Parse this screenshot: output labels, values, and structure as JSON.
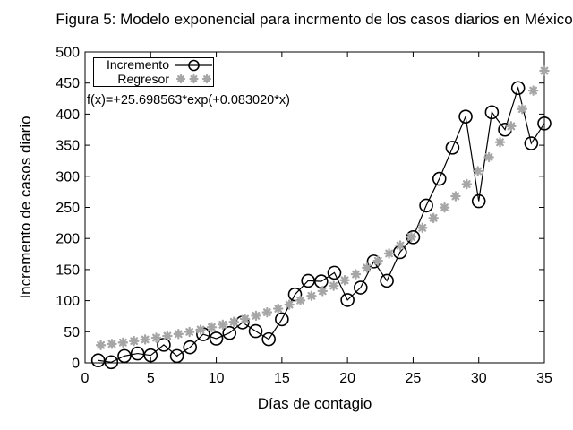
{
  "title": "Figura 5: Modelo exponencial para incrmento de los casos diarios en México",
  "annotation": "f(x)=+25.698563*exp(+0.083020*x)",
  "colors": {
    "incremento": "#000000",
    "regresor": "#a6a6a6",
    "background": "#ffffff",
    "text": "#000000"
  },
  "chart_data": {
    "type": "line",
    "title": "Figura 5: Modelo exponencial para incrmento de los casos diarios en México",
    "xlabel": "Días de contagio",
    "ylabel": "Incremento de casos diario",
    "xlim": [
      0,
      35
    ],
    "ylim": [
      0,
      500
    ],
    "xticks": [
      0,
      5,
      10,
      15,
      20,
      25,
      30,
      35
    ],
    "yticks": [
      0,
      50,
      100,
      150,
      200,
      250,
      300,
      350,
      400,
      450,
      500
    ],
    "grid": false,
    "legend_position": "top-left",
    "annotation": "f(x)=+25.698563*exp(+0.083020*x)",
    "series": [
      {
        "name": "Incremento",
        "style": "line-with-open-circles",
        "color": "#000000",
        "x": [
          1,
          2,
          3,
          4,
          5,
          6,
          7,
          8,
          9,
          10,
          11,
          12,
          13,
          14,
          15,
          16,
          17,
          18,
          19,
          20,
          21,
          22,
          23,
          24,
          25,
          26,
          27,
          28,
          29,
          30,
          31,
          32,
          33,
          34,
          35
        ],
        "values": [
          4,
          1,
          11,
          15,
          12,
          29,
          11,
          25,
          46,
          39,
          48,
          65,
          51,
          38,
          70,
          110,
          132,
          131,
          145,
          101,
          121,
          163,
          132,
          178,
          202,
          253,
          296,
          346,
          396,
          260,
          403,
          375,
          442,
          353,
          385
        ]
      },
      {
        "name": "Regresor",
        "style": "asterisk-points",
        "color": "#a6a6a6",
        "formula": "f(x)=+25.698563*exp(+0.083020*x)",
        "params": {
          "a": 25.698563,
          "b": 0.08302
        },
        "x_start": 1.2,
        "x_end": 35,
        "n_points": 41
      }
    ]
  }
}
